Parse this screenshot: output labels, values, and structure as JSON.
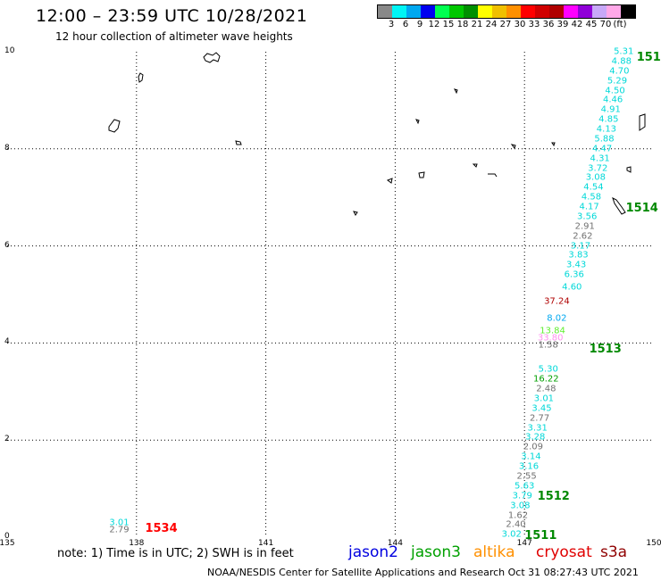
{
  "header": {
    "title": "12:00 – 23:59 UTC 10/28/2021",
    "subtitle": "12 hour collection of altimeter wave heights"
  },
  "colorbar": {
    "colors": [
      "#888888",
      "#00f5f5",
      "#00a8f0",
      "#0000f0",
      "#00ff50",
      "#00c800",
      "#009000",
      "#ffff00",
      "#f0c000",
      "#ff9000",
      "#ff0000",
      "#d00000",
      "#b00000",
      "#ff00ff",
      "#9000d8",
      "#c8a8f8",
      "#ffa8e8",
      "#000000"
    ],
    "labels": [
      "3",
      "6",
      "9",
      "12",
      "15",
      "18",
      "21",
      "24",
      "27",
      "30",
      "33",
      "36",
      "39",
      "42",
      "45",
      "70",
      "(ft)"
    ]
  },
  "axes": {
    "x_ticks": [
      "135",
      "138",
      "141",
      "144",
      "147",
      "150"
    ],
    "y_ticks": [
      "0",
      "2",
      "4",
      "6",
      "8",
      "10"
    ]
  },
  "observations": [
    {
      "lon": 146.7,
      "lat": 0.05,
      "v": "3.02",
      "c": "#00d8d8"
    },
    {
      "lon": 146.8,
      "lat": 0.25,
      "v": "2.40",
      "c": "#707070"
    },
    {
      "lon": 146.85,
      "lat": 0.45,
      "v": "1.62",
      "c": "#707070"
    },
    {
      "lon": 146.9,
      "lat": 0.65,
      "v": "3.08",
      "c": "#00d8d8"
    },
    {
      "lon": 146.95,
      "lat": 0.85,
      "v": "3.79",
      "c": "#00d8d8"
    },
    {
      "lon": 147.0,
      "lat": 1.05,
      "v": "5.63",
      "c": "#00d8d8"
    },
    {
      "lon": 147.05,
      "lat": 1.25,
      "v": "2.55",
      "c": "#707070"
    },
    {
      "lon": 147.1,
      "lat": 1.45,
      "v": "3.16",
      "c": "#00d8d8"
    },
    {
      "lon": 147.15,
      "lat": 1.65,
      "v": "3.14",
      "c": "#00d8d8"
    },
    {
      "lon": 147.2,
      "lat": 1.85,
      "v": "2.09",
      "c": "#707070"
    },
    {
      "lon": 147.25,
      "lat": 2.05,
      "v": "3.28",
      "c": "#00d8d8"
    },
    {
      "lon": 147.3,
      "lat": 2.25,
      "v": "3.31",
      "c": "#00d8d8"
    },
    {
      "lon": 147.35,
      "lat": 2.45,
      "v": "2.77",
      "c": "#707070"
    },
    {
      "lon": 147.4,
      "lat": 2.65,
      "v": "3.45",
      "c": "#00d8d8"
    },
    {
      "lon": 147.45,
      "lat": 2.85,
      "v": "3.01",
      "c": "#00d8d8"
    },
    {
      "lon": 147.5,
      "lat": 3.05,
      "v": "2.48",
      "c": "#707070"
    },
    {
      "lon": 147.5,
      "lat": 3.25,
      "v": "16.22",
      "c": "#00a000"
    },
    {
      "lon": 147.55,
      "lat": 3.45,
      "v": "5.30",
      "c": "#00d8d8"
    },
    {
      "lon": 147.55,
      "lat": 3.95,
      "v": "1.58",
      "c": "#707070"
    },
    {
      "lon": 147.6,
      "lat": 4.1,
      "v": "33.80",
      "c": "#ff90f0"
    },
    {
      "lon": 147.65,
      "lat": 4.25,
      "v": "13.84",
      "c": "#60ee30"
    },
    {
      "lon": 147.75,
      "lat": 4.5,
      "v": "8.02",
      "c": "#00a8f0"
    },
    {
      "lon": 147.75,
      "lat": 4.85,
      "v": "37.24",
      "c": "#b00000"
    },
    {
      "lon": 148.1,
      "lat": 5.15,
      "v": "4.60",
      "c": "#00d8d8"
    },
    {
      "lon": 148.15,
      "lat": 5.4,
      "v": "6.36",
      "c": "#00d8d8"
    },
    {
      "lon": 148.2,
      "lat": 5.6,
      "v": "3.43",
      "c": "#00d8d8"
    },
    {
      "lon": 148.25,
      "lat": 5.8,
      "v": "3.83",
      "c": "#00d8d8"
    },
    {
      "lon": 148.3,
      "lat": 6.0,
      "v": "3.17",
      "c": "#00d8d8"
    },
    {
      "lon": 148.35,
      "lat": 6.2,
      "v": "2.62",
      "c": "#707070"
    },
    {
      "lon": 148.4,
      "lat": 6.4,
      "v": "2.91",
      "c": "#707070"
    },
    {
      "lon": 148.45,
      "lat": 6.6,
      "v": "3.56",
      "c": "#00d8d8"
    },
    {
      "lon": 148.5,
      "lat": 6.8,
      "v": "4.17",
      "c": "#00d8d8"
    },
    {
      "lon": 148.55,
      "lat": 7.0,
      "v": "4.58",
      "c": "#00d8d8"
    },
    {
      "lon": 148.6,
      "lat": 7.2,
      "v": "4.54",
      "c": "#00d8d8"
    },
    {
      "lon": 148.65,
      "lat": 7.4,
      "v": "3.08",
      "c": "#00d8d8"
    },
    {
      "lon": 148.7,
      "lat": 7.6,
      "v": "3.72",
      "c": "#00d8d8"
    },
    {
      "lon": 148.75,
      "lat": 7.8,
      "v": "4.31",
      "c": "#00d8d8"
    },
    {
      "lon": 148.8,
      "lat": 8.0,
      "v": "4.47",
      "c": "#00d8d8"
    },
    {
      "lon": 148.85,
      "lat": 8.2,
      "v": "5.88",
      "c": "#00d8d8"
    },
    {
      "lon": 148.9,
      "lat": 8.4,
      "v": "4.13",
      "c": "#00d8d8"
    },
    {
      "lon": 148.95,
      "lat": 8.6,
      "v": "4.85",
      "c": "#00d8d8"
    },
    {
      "lon": 149.0,
      "lat": 8.8,
      "v": "4.91",
      "c": "#00d8d8"
    },
    {
      "lon": 149.05,
      "lat": 9.0,
      "v": "4.46",
      "c": "#00d8d8"
    },
    {
      "lon": 149.1,
      "lat": 9.2,
      "v": "4.50",
      "c": "#00d8d8"
    },
    {
      "lon": 149.15,
      "lat": 9.4,
      "v": "5.29",
      "c": "#00d8d8"
    },
    {
      "lon": 149.2,
      "lat": 9.6,
      "v": "4.70",
      "c": "#00d8d8"
    },
    {
      "lon": 149.25,
      "lat": 9.8,
      "v": "4.88",
      "c": "#00d8d8"
    },
    {
      "lon": 149.3,
      "lat": 10.0,
      "v": "5.31",
      "c": "#00d8d8"
    },
    {
      "lon": 137.6,
      "lat": 0.3,
      "v": "3.01",
      "c": "#00d8d8"
    },
    {
      "lon": 137.6,
      "lat": 0.15,
      "v": "2.79",
      "c": "#707070"
    }
  ],
  "passes": [
    {
      "lon": 147.0,
      "lat": 0.0,
      "label": "1511",
      "c": "#008800"
    },
    {
      "lon": 147.3,
      "lat": 0.8,
      "label": "1512",
      "c": "#008800"
    },
    {
      "lon": 148.5,
      "lat": 3.85,
      "label": "1513",
      "c": "#008800"
    },
    {
      "lon": 149.35,
      "lat": 6.75,
      "label": "1514",
      "c": "#008800"
    },
    {
      "lon": 149.6,
      "lat": 9.85,
      "label": "151",
      "c": "#008800"
    },
    {
      "lon": 138.2,
      "lat": 0.15,
      "label": "1534",
      "c": "#ff0000"
    }
  ],
  "footer": {
    "note": "note: 1) Time is in UTC; 2) SWH is in feet",
    "legend": [
      {
        "name": "jason2",
        "color": "#0000e0"
      },
      {
        "name": "jason3",
        "color": "#00a000"
      },
      {
        "name": "altika",
        "color": "#ff9000"
      },
      {
        "name": "cryosat",
        "color": "#e00000"
      },
      {
        "name": "s3a",
        "color": "#900000"
      }
    ],
    "credit": "NOAA/NESDIS Center for Satellite Applications and Research   Oct 31 08:27:43 UTC 2021"
  }
}
